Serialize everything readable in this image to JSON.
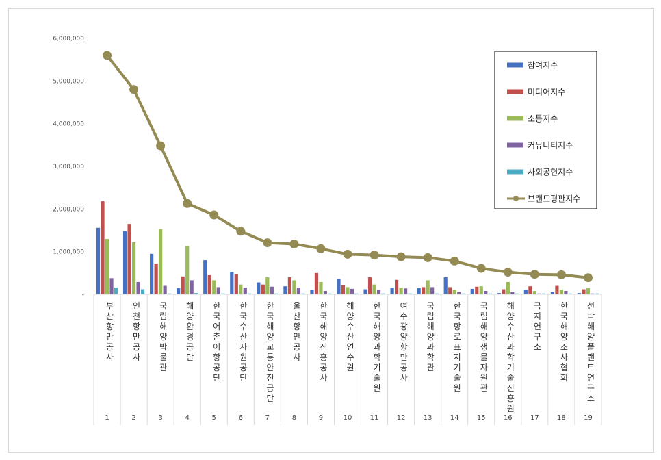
{
  "chart_data": {
    "type": "bar",
    "combo_line_series": "브랜드평판지수",
    "categories": [
      "1",
      "2",
      "3",
      "4",
      "5",
      "6",
      "7",
      "8",
      "9",
      "10",
      "11",
      "12",
      "13",
      "14",
      "15",
      "16",
      "17",
      "18",
      "19"
    ],
    "category_names": [
      "부산항만공사",
      "인천항만공사",
      "국립해양박물관",
      "해양환경공단",
      "한국어촌어항공단",
      "한국수산자원공단",
      "한국해양교통안전공단",
      "울산항만공사",
      "한국해양진흥공사",
      "해양수산연수원",
      "한국해양과학기술원",
      "여수광양항만공사",
      "국립해양과학관",
      "한국항로표지기술원",
      "국립해양생물자원관",
      "해양수산과학기술진흥원",
      "극지연구소",
      "한국해양조사협회",
      "선박해양플랜트연구소"
    ],
    "ylim": [
      0,
      6000000
    ],
    "yticks": [
      "-",
      "1,000,000",
      "2,000,000",
      "3,000,000",
      "4,000,000",
      "5,000,000",
      "6,000,000"
    ],
    "grid": false,
    "legend_position": "top-right",
    "series": [
      {
        "name": "참여지수",
        "color": "#4472c4",
        "values": [
          1560000,
          1480000,
          950000,
          150000,
          800000,
          530000,
          280000,
          190000,
          100000,
          360000,
          120000,
          160000,
          150000,
          400000,
          130000,
          30000,
          110000,
          50000,
          30000
        ]
      },
      {
        "name": "미디어지수",
        "color": "#c0504d",
        "values": [
          2180000,
          1650000,
          720000,
          420000,
          450000,
          480000,
          230000,
          400000,
          500000,
          220000,
          400000,
          340000,
          170000,
          170000,
          180000,
          120000,
          190000,
          200000,
          120000
        ]
      },
      {
        "name": "소통지수",
        "color": "#9bbb59",
        "values": [
          1300000,
          1220000,
          1530000,
          1130000,
          330000,
          230000,
          400000,
          330000,
          290000,
          170000,
          230000,
          160000,
          330000,
          100000,
          190000,
          290000,
          80000,
          110000,
          150000
        ]
      },
      {
        "name": "커뮤니티지수",
        "color": "#8064a2",
        "values": [
          380000,
          290000,
          200000,
          330000,
          170000,
          160000,
          180000,
          160000,
          80000,
          130000,
          100000,
          140000,
          170000,
          50000,
          80000,
          50000,
          20000,
          80000,
          20000
        ]
      },
      {
        "name": "사회공헌지수",
        "color": "#4bacc6",
        "values": [
          160000,
          120000,
          20000,
          30000,
          20000,
          20000,
          20000,
          20000,
          20000,
          20000,
          20000,
          20000,
          20000,
          20000,
          20000,
          20000,
          20000,
          20000,
          20000
        ]
      },
      {
        "name": "브랜드평판지수",
        "type": "line",
        "color": "#948a54",
        "values": [
          5600000,
          4800000,
          3480000,
          2130000,
          1860000,
          1480000,
          1210000,
          1180000,
          1070000,
          940000,
          920000,
          880000,
          860000,
          780000,
          610000,
          520000,
          470000,
          460000,
          390000
        ]
      }
    ]
  }
}
